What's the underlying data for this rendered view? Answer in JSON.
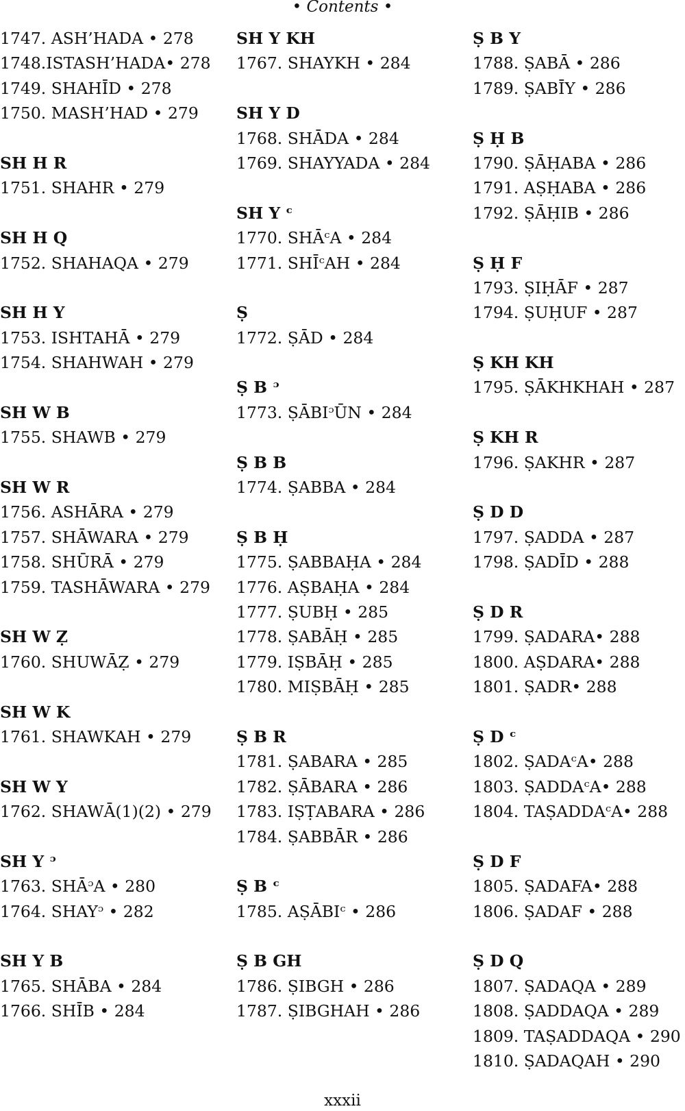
{
  "running_head": "• Contents •",
  "folio": "xxxii",
  "columns": [
    [
      {
        "t": "e",
        "text": "1747. ASH’HADA • 278"
      },
      {
        "t": "e",
        "text": "1748.ISTASH’HADA• 278"
      },
      {
        "t": "e",
        "text": "1749. SHAHĪD • 278"
      },
      {
        "t": "e",
        "text": "1750. MASH’HAD • 279"
      },
      {
        "t": "g"
      },
      {
        "t": "h",
        "text": "SH H R"
      },
      {
        "t": "e",
        "text": "1751. SHAHR • 279"
      },
      {
        "t": "g"
      },
      {
        "t": "h",
        "text": "SH H Q"
      },
      {
        "t": "e",
        "text": "1752. SHAHAQA • 279"
      },
      {
        "t": "g"
      },
      {
        "t": "h",
        "text": "SH H Y"
      },
      {
        "t": "e",
        "text": "1753. ISHTAHĀ • 279"
      },
      {
        "t": "e",
        "text": "1754. SHAHWAH • 279"
      },
      {
        "t": "g"
      },
      {
        "t": "h",
        "text": "SH W B"
      },
      {
        "t": "e",
        "text": "1755. SHAWB • 279"
      },
      {
        "t": "g"
      },
      {
        "t": "h",
        "text": "SH W R"
      },
      {
        "t": "e",
        "text": "1756. ASHĀRA • 279"
      },
      {
        "t": "e",
        "text": "1757. SHĀWARA • 279"
      },
      {
        "t": "e",
        "text": "1758. SHŪRĀ • 279"
      },
      {
        "t": "e",
        "text": "1759. TASHĀWARA • 279"
      },
      {
        "t": "g"
      },
      {
        "t": "h",
        "text": "SH W Ẓ"
      },
      {
        "t": "e",
        "text": "1760. SHUWĀẒ • 279"
      },
      {
        "t": "g"
      },
      {
        "t": "h",
        "text": "SH W K"
      },
      {
        "t": "e",
        "text": "1761. SHAWKAH • 279"
      },
      {
        "t": "g"
      },
      {
        "t": "h",
        "text": "SH W Y"
      },
      {
        "t": "e",
        "text": "1762. SHAWĀ(1)(2) • 279"
      },
      {
        "t": "g"
      },
      {
        "t": "h",
        "text": "SH Y ᵓ"
      },
      {
        "t": "e",
        "text": "1763. SHĀᵓA • 280"
      },
      {
        "t": "e",
        "text": "1764. SHAYᵓ • 282"
      },
      {
        "t": "g"
      },
      {
        "t": "h",
        "text": "SH Y B"
      },
      {
        "t": "e",
        "text": "1765. SHĀBA • 284"
      },
      {
        "t": "e",
        "text": "1766. SHĪB • 284"
      }
    ],
    [
      {
        "t": "h",
        "text": "SH Y KH"
      },
      {
        "t": "e",
        "text": "1767. SHAYKH • 284"
      },
      {
        "t": "g"
      },
      {
        "t": "h",
        "text": "SH Y D"
      },
      {
        "t": "e",
        "text": "1768. SHĀDA • 284"
      },
      {
        "t": "e",
        "text": "1769. SHAYYADA • 284"
      },
      {
        "t": "g"
      },
      {
        "t": "h",
        "text": "SH Y ᶜ"
      },
      {
        "t": "e",
        "text": "1770. SHĀᶜA • 284"
      },
      {
        "t": "e",
        "text": "1771. SHĪᶜAH • 284"
      },
      {
        "t": "g"
      },
      {
        "t": "h",
        "text": "Ṣ"
      },
      {
        "t": "e",
        "text": "1772. ṢĀD • 284"
      },
      {
        "t": "g"
      },
      {
        "t": "h",
        "text": "Ṣ B ᵓ"
      },
      {
        "t": "e",
        "text": "1773. ṢĀBIᵓŪN • 284"
      },
      {
        "t": "g"
      },
      {
        "t": "h",
        "text": "Ṣ B B"
      },
      {
        "t": "e",
        "text": "1774. ṢABBA • 284"
      },
      {
        "t": "g"
      },
      {
        "t": "h",
        "text": "Ṣ B Ḥ"
      },
      {
        "t": "e",
        "text": "1775. ṢABBAḤA • 284"
      },
      {
        "t": "e",
        "text": "1776. AṢBAḤA • 284"
      },
      {
        "t": "e",
        "text": "1777. ṢUBḤ • 285"
      },
      {
        "t": "e",
        "text": "1778. ṢABĀḤ • 285"
      },
      {
        "t": "e",
        "text": "1779. IṢBĀḤ • 285"
      },
      {
        "t": "e",
        "text": "1780. MIṢBĀḤ • 285"
      },
      {
        "t": "g"
      },
      {
        "t": "h",
        "text": "Ṣ B R"
      },
      {
        "t": "e",
        "text": "1781. ṢABARA • 285"
      },
      {
        "t": "e",
        "text": "1782. ṢĀBARA • 286"
      },
      {
        "t": "e",
        "text": "1783. IṢṬABARA • 286"
      },
      {
        "t": "e",
        "text": "1784. ṢABBĀR • 286"
      },
      {
        "t": "g"
      },
      {
        "t": "h",
        "text": "Ṣ B ᶜ"
      },
      {
        "t": "e",
        "text": "1785. AṢĀBIᶜ • 286"
      },
      {
        "t": "g"
      },
      {
        "t": "h",
        "text": "Ṣ B GH"
      },
      {
        "t": "e",
        "text": "1786. ṢIBGH • 286"
      },
      {
        "t": "e",
        "text": "1787. ṢIBGHAH • 286"
      }
    ],
    [
      {
        "t": "h",
        "text": "Ṣ B Y"
      },
      {
        "t": "e",
        "text": "1788. ṢABĀ • 286"
      },
      {
        "t": "e",
        "text": "1789. ṢABĪY • 286"
      },
      {
        "t": "g"
      },
      {
        "t": "h",
        "text": "Ṣ Ḥ B"
      },
      {
        "t": "e",
        "text": "1790. ṢĀḤABA • 286"
      },
      {
        "t": "e",
        "text": "1791. AṢḤABA • 286"
      },
      {
        "t": "e",
        "text": "1792. ṢĀḤIB • 286"
      },
      {
        "t": "g"
      },
      {
        "t": "h",
        "text": "Ṣ Ḥ F"
      },
      {
        "t": "e",
        "text": "1793. ṢIḤĀF • 287"
      },
      {
        "t": "e",
        "text": "1794. ṢUḤUF • 287"
      },
      {
        "t": "g"
      },
      {
        "t": "h",
        "text": "Ṣ KH KH"
      },
      {
        "t": "e",
        "text": "1795. ṢĀKHKHAH • 287"
      },
      {
        "t": "g"
      },
      {
        "t": "h",
        "text": "Ṣ KH R"
      },
      {
        "t": "e",
        "text": "1796. ṢAKHR • 287"
      },
      {
        "t": "g"
      },
      {
        "t": "h",
        "text": "Ṣ D D"
      },
      {
        "t": "e",
        "text": "1797. ṢADDA • 287"
      },
      {
        "t": "e",
        "text": "1798. ṢADĪD • 288"
      },
      {
        "t": "g"
      },
      {
        "t": "h",
        "text": "Ṣ D R"
      },
      {
        "t": "e",
        "text": "1799. ṢADARA• 288"
      },
      {
        "t": "e",
        "text": "1800. AṢDARA• 288"
      },
      {
        "t": "e",
        "text": "1801. ṢADR• 288"
      },
      {
        "t": "g"
      },
      {
        "t": "h",
        "text": "Ṣ D ᶜ"
      },
      {
        "t": "e",
        "text": "1802. ṢADAᶜA• 288"
      },
      {
        "t": "e",
        "text": "1803. ṢADDAᶜA• 288"
      },
      {
        "t": "e",
        "text": "1804. TAṢADDAᶜA• 288"
      },
      {
        "t": "g"
      },
      {
        "t": "h",
        "text": "Ṣ D F"
      },
      {
        "t": "e",
        "text": "1805. ṢADAFA• 288"
      },
      {
        "t": "e",
        "text": "1806. ṢADAF • 288"
      },
      {
        "t": "g"
      },
      {
        "t": "h",
        "text": "Ṣ D Q"
      },
      {
        "t": "e",
        "text": "1807. ṢADAQA • 289"
      },
      {
        "t": "e",
        "text": "1808. ṢADDAQA • 289"
      },
      {
        "t": "e",
        "text": "1809. TAṢADDAQA • 290"
      },
      {
        "t": "e",
        "text": "1810. ṢADAQAH • 290"
      }
    ]
  ]
}
